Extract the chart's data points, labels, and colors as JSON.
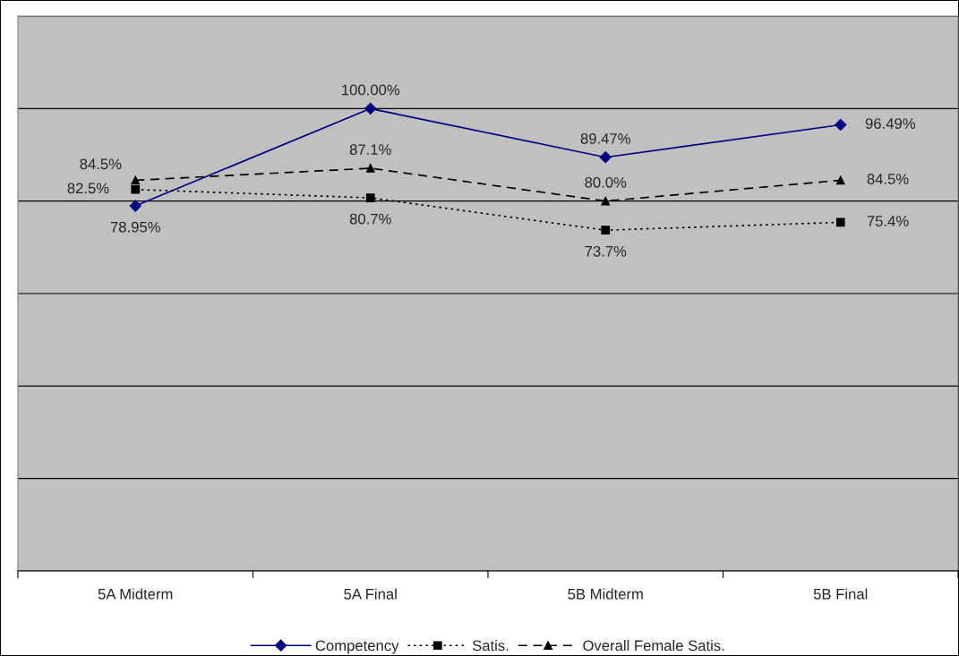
{
  "chart_data": {
    "type": "line",
    "categories": [
      "5A Midterm",
      "5A Final",
      "5B Midterm",
      "5B Final"
    ],
    "series": [
      {
        "name": "Competency",
        "color": "#000080",
        "marker": "diamond",
        "line_style": "solid",
        "values": [
          78.95,
          100.0,
          89.47,
          96.49
        ],
        "value_labels": [
          "78.95%",
          "100.00%",
          "89.47%",
          "96.49%"
        ]
      },
      {
        "name": "Satis.",
        "color": "#000000",
        "marker": "square",
        "line_style": "dotted",
        "values": [
          82.5,
          80.7,
          73.7,
          75.4
        ],
        "value_labels": [
          "82.5%",
          "80.7%",
          "73.7%",
          "75.4%"
        ]
      },
      {
        "name": "Overall Female Satis.",
        "color": "#000000",
        "marker": "triangle",
        "line_style": "dashed",
        "values": [
          84.5,
          87.1,
          80.0,
          84.5
        ],
        "value_labels": [
          "84.5%",
          "87.1%",
          "80.0%",
          "84.5%"
        ]
      }
    ],
    "ylim": [
      0,
      120
    ],
    "yticks": [
      {
        "value": 0,
        "label": null
      },
      {
        "value": 20,
        "label": null
      },
      {
        "value": 40,
        "label": null
      },
      {
        "value": 60,
        "label": null
      },
      {
        "value": 80,
        "label": null
      },
      {
        "value": 100,
        "label": null
      },
      {
        "value": 120,
        "label": null
      }
    ],
    "tick_labels": "x",
    "grid": "y",
    "legend": "bottom"
  }
}
